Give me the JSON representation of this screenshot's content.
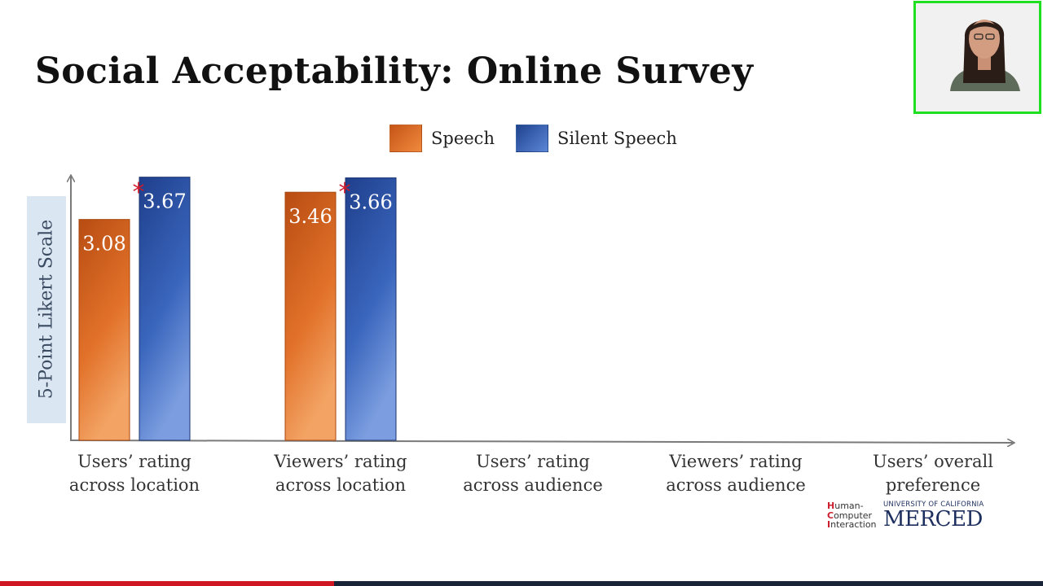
{
  "slide": {
    "title": "Social Acceptability: Online Survey"
  },
  "legend": {
    "items": [
      {
        "label": "Speech",
        "color": "#e0702a"
      },
      {
        "label": "Silent Speech",
        "color": "#2f5aab"
      }
    ]
  },
  "chart_data": {
    "type": "bar",
    "ylabel": "5-Point Likert Scale",
    "ylim": [
      0,
      5
    ],
    "categories": [
      "Users’ rating\nacross location",
      "Viewers’ rating\nacross location",
      "Users’ rating\nacross audience",
      "Viewers’ rating\nacross audience",
      "Users’ overall\npreference"
    ],
    "series": [
      {
        "name": "Speech",
        "color": "#e0702a",
        "values": [
          3.08,
          3.46,
          null,
          null,
          null
        ]
      },
      {
        "name": "Silent Speech",
        "color": "#2f5aab",
        "values": [
          3.67,
          3.66,
          null,
          null,
          null
        ]
      }
    ],
    "significance_markers": [
      "*",
      "*",
      "",
      "",
      ""
    ],
    "grid": false,
    "legend_position": "top"
  },
  "logos": {
    "hci_lines": [
      "Human-",
      "Computer",
      "Interaction"
    ],
    "uc_line": "UNIVERSITY OF CALIFORNIA",
    "merced": "MERCED"
  },
  "webcam": {
    "icon": "presenter-video-icon"
  },
  "progress": {
    "fraction": 0.32,
    "fill_color": "#d01523",
    "track_color": "#1a2438"
  }
}
